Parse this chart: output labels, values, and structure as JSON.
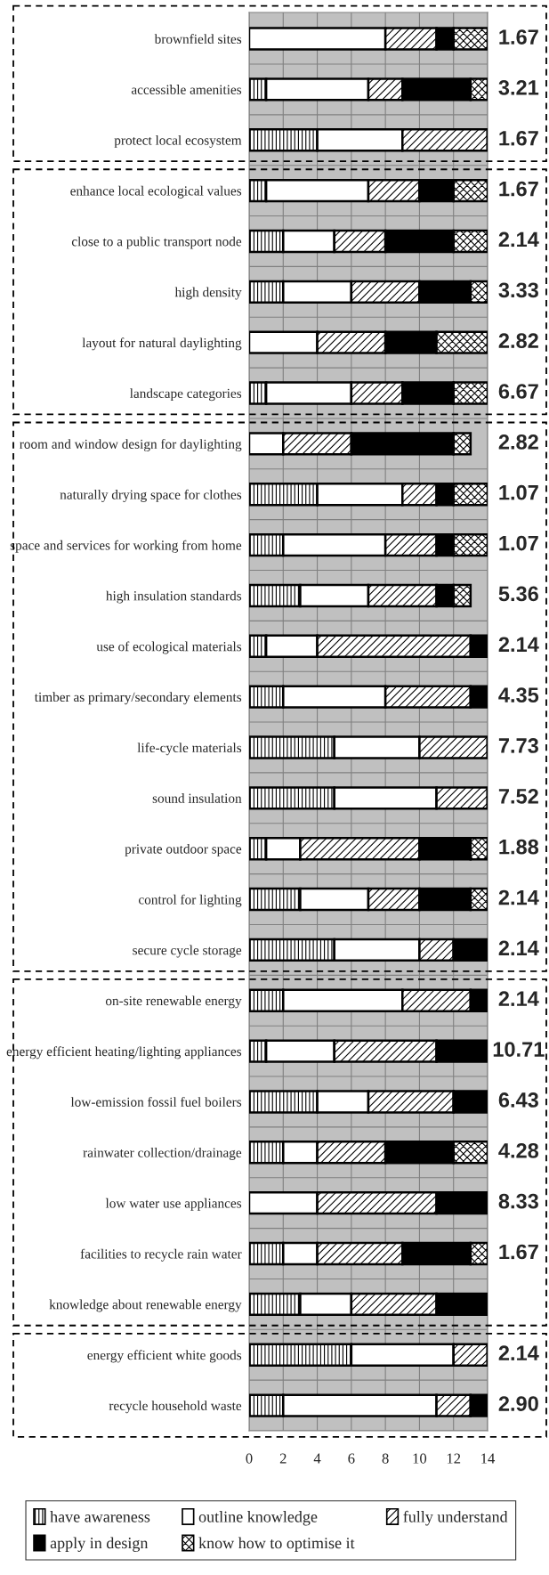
{
  "chart_data": {
    "type": "bar",
    "orientation": "horizontal",
    "stacked": true,
    "categories": [
      "brownfield sites",
      "accessible amenities",
      "protect local ecosystem",
      "enhance local ecological values",
      "close to a public transport node",
      "high density",
      "layout for natural daylighting",
      "landscape categories",
      "room and window design for daylighting",
      "naturally drying space for clothes",
      "space and services for working from home",
      "high insulation standards",
      "use of ecological materials",
      "timber as primary/secondary elements",
      "life-cycle materials",
      "sound insulation",
      "private outdoor space",
      "control for lighting",
      "secure cycle storage",
      "on-site renewable energy",
      "energy efficient heating/lighting appliances",
      "low-emission fossil fuel boilers",
      "rainwater collection/drainage",
      "low water use appliances",
      "facilities to recycle rain water",
      "knowledge about renewable energy",
      "energy efficient white goods",
      "recycle household waste"
    ],
    "series": [
      {
        "name": "have awareness",
        "color": "#000000",
        "values": [
          0,
          1,
          4,
          1,
          2,
          2,
          0,
          1,
          0,
          4,
          2,
          3,
          1,
          2,
          5,
          5,
          1,
          3,
          5,
          2,
          1,
          4,
          2,
          0,
          2,
          3,
          6,
          2
        ]
      },
      {
        "name": "outline knowledge",
        "color": "#ffffff",
        "values": [
          8,
          6,
          5,
          6,
          3,
          4,
          4,
          5,
          2,
          5,
          6,
          4,
          3,
          6,
          5,
          6,
          2,
          4,
          5,
          7,
          4,
          3,
          2,
          4,
          2,
          3,
          6,
          9
        ]
      },
      {
        "name": "fully understand",
        "color": "#000000",
        "values": [
          3,
          2,
          5,
          3,
          3,
          4,
          4,
          3,
          4,
          2,
          3,
          4,
          9,
          5,
          4,
          3,
          7,
          3,
          2,
          4,
          6,
          5,
          4,
          7,
          5,
          5,
          2,
          2
        ]
      },
      {
        "name": "apply in design",
        "color": "#000000",
        "values": [
          1,
          4,
          0,
          2,
          4,
          3,
          3,
          3,
          6,
          1,
          1,
          1,
          1,
          1,
          0,
          0,
          3,
          3,
          2,
          1,
          3,
          2,
          4,
          3,
          4,
          3,
          0,
          1
        ]
      },
      {
        "name": "know how to optimise it",
        "color": "#000000",
        "values": [
          2,
          1,
          0,
          2,
          2,
          1,
          3,
          2,
          1,
          2,
          2,
          1,
          0,
          0,
          0,
          0,
          1,
          1,
          0,
          0,
          0,
          0,
          2,
          0,
          1,
          0,
          0,
          0
        ]
      }
    ],
    "xlim": [
      0,
      14
    ],
    "xticks": [
      0,
      2,
      4,
      6,
      8,
      10,
      12,
      14
    ],
    "grid": true,
    "legend": "bottom",
    "annotations": [
      "1.67",
      "3.21",
      "1.67",
      "1.67",
      "2.14",
      "3.33",
      "2.82",
      "6.67",
      "2.82",
      "1.07",
      "1.07",
      "5.36",
      "2.14",
      "4.35",
      "7.73",
      "7.52",
      "1.88",
      "2.14",
      "2.14",
      "2.14",
      "10.71",
      "6.43",
      "4.28",
      "8.33",
      "1.67",
      "2.14",
      "2.90"
    ]
  }
}
